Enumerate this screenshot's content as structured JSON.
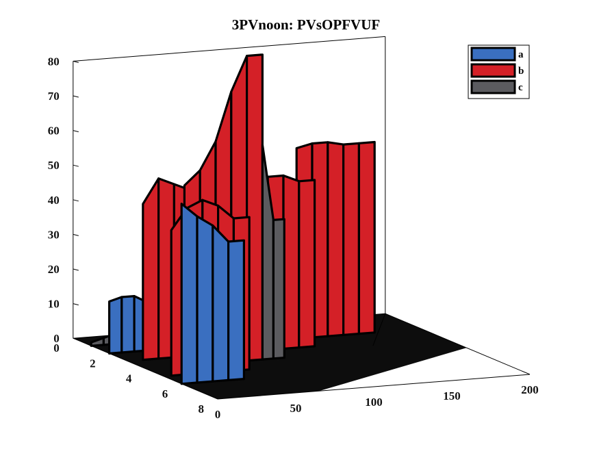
{
  "chart_data": {
    "type": "bar3d",
    "title": "3PVnoon: PVsOPFVUF",
    "xlabel": "",
    "ylabel": "",
    "zlabel": "",
    "x_ticks": [
      "0",
      "50",
      "100",
      "150",
      "200"
    ],
    "y_ticks": [
      "0",
      "2",
      "4",
      "6",
      "8"
    ],
    "z_ticks": [
      "0",
      "10",
      "20",
      "30",
      "40",
      "50",
      "60",
      "70",
      "80"
    ],
    "xlim": [
      0,
      200
    ],
    "ylim": [
      0,
      8
    ],
    "zlim": [
      0,
      80
    ],
    "legend": {
      "position": "top-right"
    },
    "grid": false,
    "colors": {
      "a": "#3a6fc0",
      "b": "#d42027",
      "c": "#5b5b5f",
      "floor": "#000000"
    },
    "series": [
      {
        "name": "a",
        "groups": [
          {
            "y": 6,
            "x": [
              0,
              10,
              20,
              30
            ],
            "values": [
              52,
              48,
              45,
              40
            ]
          },
          {
            "y": 2,
            "x": [
              0,
              8,
              16,
              24,
              32,
              40,
              48
            ],
            "values": [
              15,
              16,
              16,
              14,
              12,
              10,
              8
            ]
          },
          {
            "y": 1,
            "x": [
              40,
              48,
              56
            ],
            "values": [
              20,
              22,
              20
            ]
          },
          {
            "y": 1,
            "x": [
              105,
              115,
              125
            ],
            "values": [
              25,
              27,
              25
            ]
          },
          {
            "y": 1,
            "x": [
              135,
              145,
              155,
              165
            ],
            "values": [
              30,
              32,
              31,
              30
            ]
          }
        ]
      },
      {
        "name": "b",
        "groups": [
          {
            "y": 5,
            "x": [
              5,
              15,
              25,
              35,
              45
            ],
            "values": [
              42,
              48,
              50,
              48,
              44
            ]
          },
          {
            "y": 4,
            "x": [
              25,
              35,
              45,
              55,
              65
            ],
            "values": [
              52,
              56,
              64,
              78,
              88
            ]
          },
          {
            "y": 3,
            "x": [
              10,
              20,
              30,
              40,
              50
            ],
            "values": [
              45,
              52,
              50,
              48,
              46
            ]
          },
          {
            "y": 3,
            "x": [
              80,
              90,
              100,
              110
            ],
            "values": [
              52,
              50,
              50,
              48
            ]
          },
          {
            "y": 2,
            "x": [
              120,
              130,
              140,
              150,
              160
            ],
            "values": [
              55,
              56,
              56,
              55,
              55
            ]
          }
        ]
      },
      {
        "name": "c",
        "groups": [
          {
            "y": 1,
            "x": [
              0,
              8,
              16,
              24,
              32,
              40,
              48
            ],
            "values": [
              1,
              2,
              3,
              4,
              5,
              6,
              7
            ]
          },
          {
            "y": 4,
            "x": [
              75,
              82
            ],
            "values": [
              62,
              40
            ]
          },
          {
            "y": 1,
            "x": [
              98,
              108
            ],
            "values": [
              30,
              35
            ]
          },
          {
            "y": 1,
            "x": [
              135,
              145,
              155
            ],
            "values": [
              24,
              28,
              30
            ]
          }
        ]
      }
    ]
  }
}
